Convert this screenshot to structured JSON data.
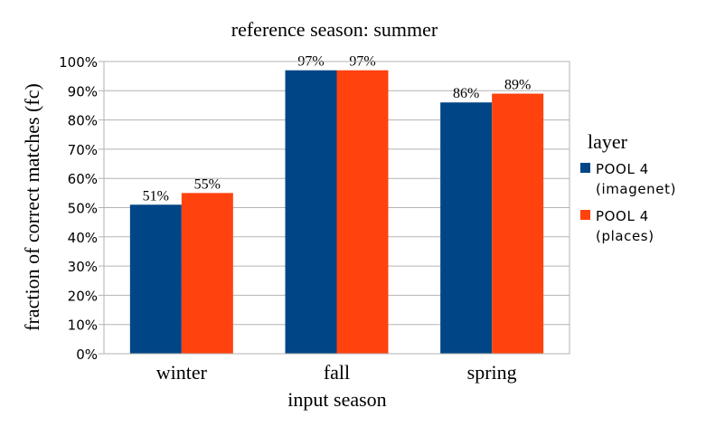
{
  "chart_data": {
    "type": "bar",
    "title": "reference season: summer",
    "xlabel": "input season",
    "ylabel": "fraction of correct matches (fc)",
    "categories": [
      "winter",
      "fall",
      "spring"
    ],
    "ylim": [
      0,
      100
    ],
    "yticks": [
      "0%",
      "10%",
      "20%",
      "30%",
      "40%",
      "50%",
      "60%",
      "70%",
      "80%",
      "90%",
      "100%"
    ],
    "grid": true,
    "legend_title": "layer",
    "legend_position": "right",
    "series": [
      {
        "name": "POOL 4 (imagenet)",
        "legend_lines": [
          "POOL 4",
          "(imagenet)"
        ],
        "color": "#004586",
        "values": [
          51,
          97,
          86
        ],
        "labels": [
          "51%",
          "97%",
          "86%"
        ]
      },
      {
        "name": "POOL 4 (places)",
        "legend_lines": [
          "POOL 4",
          "(places)"
        ],
        "color": "#ff420e",
        "values": [
          55,
          97,
          89
        ],
        "labels": [
          "55%",
          "97%",
          "89%"
        ]
      }
    ]
  }
}
